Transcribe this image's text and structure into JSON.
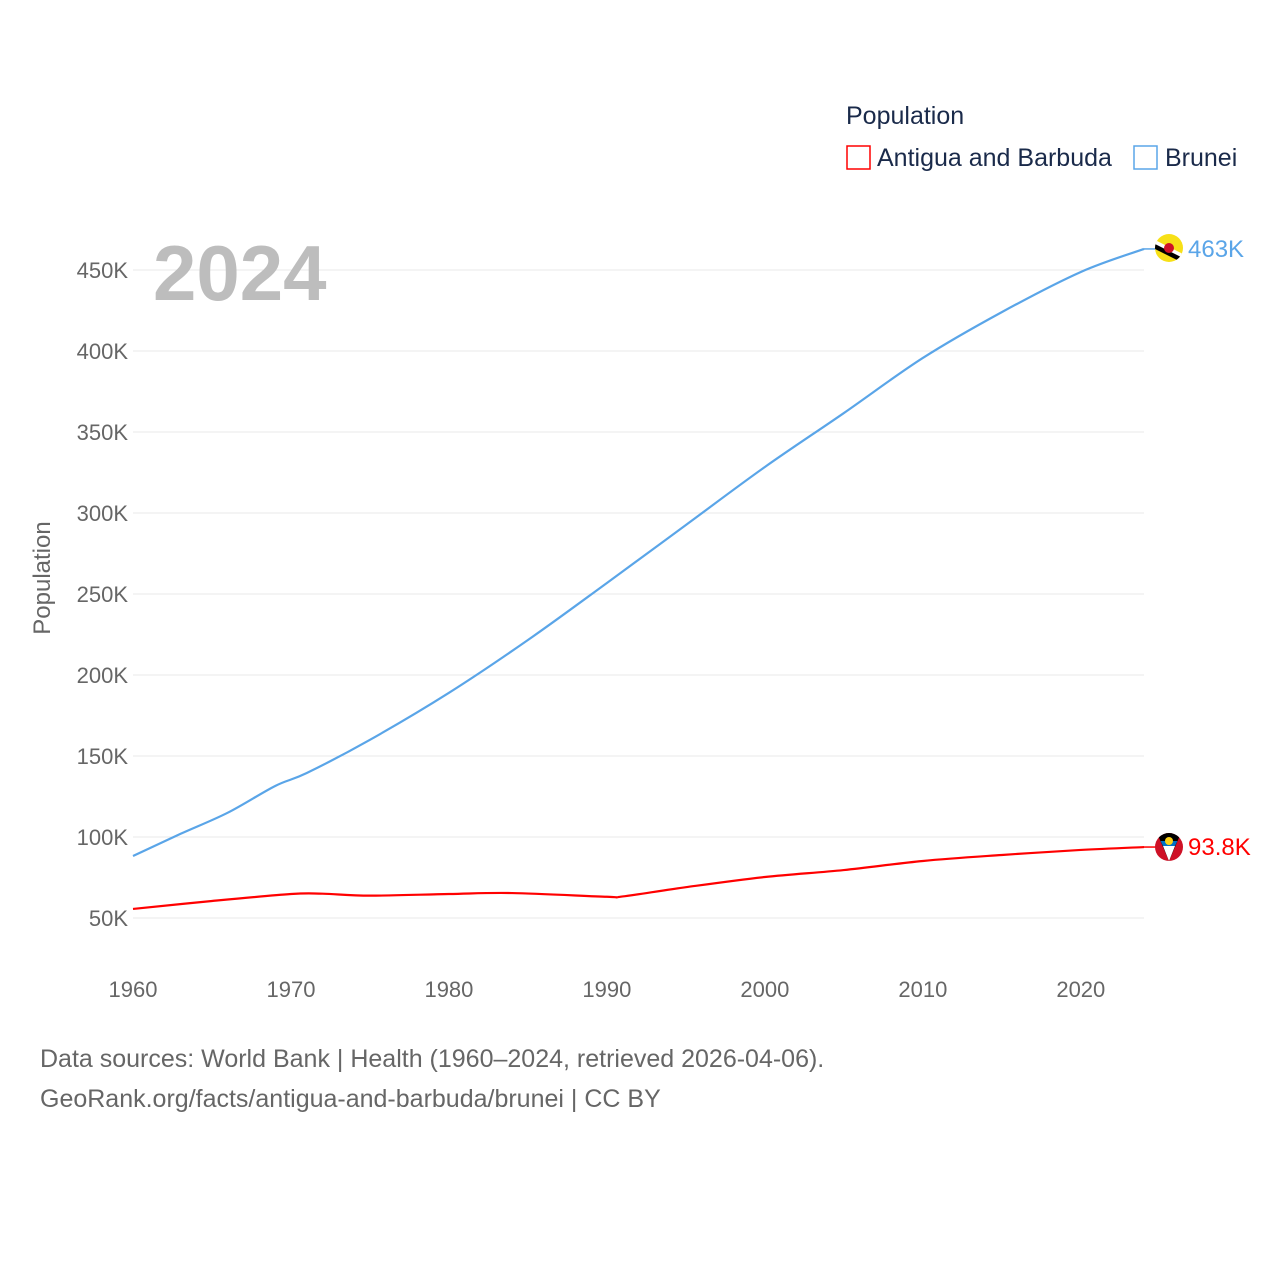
{
  "chart_data": {
    "type": "line",
    "title": "",
    "xlabel": "",
    "ylabel": "Population",
    "year_watermark": "2024",
    "legend_title": "Population",
    "legend_placement": "top-right",
    "xlim": [
      1960,
      2024
    ],
    "ylim": [
      30000,
      480000
    ],
    "x_ticks": [
      1960,
      1970,
      1980,
      1990,
      2000,
      2010,
      2020
    ],
    "x_tick_labels": [
      "1960",
      "1970",
      "1980",
      "1990",
      "2000",
      "2010",
      "2020"
    ],
    "y_ticks": [
      50000,
      100000,
      150000,
      200000,
      250000,
      300000,
      350000,
      400000,
      450000
    ],
    "y_tick_labels": [
      "50K",
      "100K",
      "150K",
      "200K",
      "250K",
      "300K",
      "350K",
      "400K",
      "450K"
    ],
    "grid": true,
    "series": [
      {
        "name": "Antigua and Barbuda",
        "color": "#ff0000",
        "end_label": "93.8K",
        "x": [
          1960,
          1965,
          1970,
          1972,
          1975,
          1980,
          1984,
          1990,
          1991,
          1995,
          2000,
          2005,
          2010,
          2015,
          2020,
          2024
        ],
        "values": [
          55600,
          60500,
          64800,
          65000,
          63800,
          64800,
          65400,
          63100,
          63300,
          69000,
          75300,
          79600,
          85200,
          88900,
          92000,
          93800
        ]
      },
      {
        "name": "Brunei",
        "color": "#5aa5e8",
        "end_label": "463K",
        "x": [
          1960,
          1963,
          1966,
          1969,
          1971,
          1975,
          1980,
          1985,
          1990,
          1995,
          2000,
          2005,
          2010,
          2015,
          2020,
          2024
        ],
        "values": [
          88300,
          101900,
          115000,
          131500,
          139500,
          160000,
          189000,
          221600,
          256800,
          292600,
          328400,
          361700,
          395700,
          424000,
          448800,
          463000
        ]
      }
    ]
  },
  "footer": {
    "line1": "Data sources: World Bank | Health (1960–2024, retrieved 2026-04-06).",
    "line2": "GeoRank.org/facts/antigua-and-barbuda/brunei | CC BY"
  }
}
